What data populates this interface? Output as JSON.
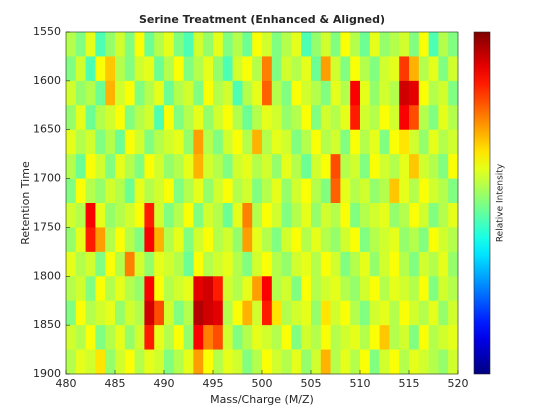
{
  "chart_data": {
    "type": "heatmap",
    "title": "Serine Treatment (Enhanced & Aligned)",
    "x_label": "Mass/Charge (M/Z)",
    "y_label": "Retention Time",
    "colorbar_label": "Relative Intensity",
    "colormap": "jet",
    "clim": [
      0,
      100
    ],
    "y_reversed": true,
    "xlim": [
      480,
      520
    ],
    "ylim": [
      1550,
      1900
    ],
    "xticks": [
      480,
      485,
      490,
      495,
      500,
      505,
      510,
      515,
      520
    ],
    "yticks": [
      1550,
      1600,
      1650,
      1700,
      1750,
      1800,
      1850,
      1900
    ],
    "x": [
      480.5,
      481.5,
      482.5,
      483.5,
      484.5,
      485.5,
      486.5,
      487.5,
      488.5,
      489.5,
      490.5,
      491.5,
      492.5,
      493.5,
      494.5,
      495.5,
      496.5,
      497.5,
      498.5,
      499.5,
      500.5,
      501.5,
      502.5,
      503.5,
      504.5,
      505.5,
      506.5,
      507.5,
      508.5,
      509.5,
      510.5,
      511.5,
      512.5,
      513.5,
      514.5,
      515.5,
      516.5,
      517.5,
      518.5,
      519.5
    ],
    "y": [
      1562.5,
      1587.5,
      1612.5,
      1637.5,
      1662.5,
      1687.5,
      1712.5,
      1737.5,
      1762.5,
      1787.5,
      1812.5,
      1837.5,
      1862.5,
      1887.5
    ],
    "values": [
      [
        55,
        50,
        60,
        45,
        52,
        58,
        50,
        62,
        48,
        55,
        60,
        50,
        45,
        58,
        52,
        60,
        50,
        55,
        48,
        62,
        58,
        50,
        55,
        60,
        45,
        52,
        58,
        50,
        62,
        55,
        48,
        60,
        52,
        55,
        58,
        50,
        62,
        45,
        55,
        50
      ],
      [
        50,
        58,
        45,
        62,
        68,
        55,
        50,
        58,
        60,
        48,
        55,
        62,
        50,
        55,
        60,
        52,
        45,
        58,
        62,
        55,
        75,
        50,
        58,
        55,
        60,
        48,
        72,
        58,
        50,
        62,
        55,
        50,
        58,
        60,
        82,
        70,
        55,
        60,
        50,
        58
      ],
      [
        58,
        52,
        55,
        48,
        70,
        58,
        62,
        50,
        55,
        60,
        48,
        55,
        58,
        50,
        62,
        55,
        58,
        45,
        55,
        60,
        78,
        55,
        50,
        62,
        58,
        55,
        50,
        60,
        55,
        88,
        60,
        52,
        58,
        55,
        92,
        90,
        62,
        55,
        58,
        50
      ],
      [
        52,
        60,
        48,
        55,
        58,
        62,
        50,
        55,
        58,
        45,
        62,
        50,
        55,
        60,
        52,
        58,
        62,
        55,
        48,
        55,
        60,
        58,
        52,
        55,
        62,
        50,
        58,
        55,
        60,
        85,
        58,
        55,
        62,
        58,
        88,
        80,
        55,
        50,
        60,
        55
      ],
      [
        60,
        55,
        58,
        50,
        55,
        48,
        62,
        58,
        50,
        55,
        58,
        60,
        52,
        72,
        55,
        50,
        58,
        62,
        55,
        70,
        55,
        60,
        58,
        50,
        55,
        62,
        55,
        58,
        50,
        62,
        55,
        60,
        50,
        62,
        65,
        58,
        52,
        60,
        55,
        58
      ],
      [
        55,
        48,
        62,
        58,
        50,
        60,
        55,
        50,
        62,
        58,
        52,
        55,
        60,
        70,
        58,
        55,
        50,
        58,
        60,
        55,
        58,
        52,
        60,
        55,
        48,
        58,
        62,
        80,
        55,
        58,
        50,
        62,
        58,
        55,
        60,
        68,
        58,
        55,
        50,
        62
      ],
      [
        50,
        62,
        55,
        52,
        58,
        55,
        48,
        60,
        55,
        58,
        62,
        50,
        55,
        60,
        52,
        58,
        62,
        55,
        58,
        50,
        55,
        60,
        52,
        58,
        62,
        55,
        50,
        78,
        60,
        55,
        58,
        52,
        55,
        68,
        60,
        55,
        62,
        58,
        55,
        50
      ],
      [
        58,
        55,
        88,
        60,
        52,
        55,
        58,
        62,
        85,
        58,
        50,
        55,
        62,
        50,
        58,
        55,
        48,
        60,
        75,
        55,
        62,
        58,
        50,
        55,
        60,
        52,
        58,
        55,
        62,
        50,
        55,
        58,
        60,
        52,
        55,
        62,
        58,
        50,
        55,
        60
      ],
      [
        52,
        60,
        85,
        72,
        55,
        62,
        55,
        50,
        88,
        70,
        55,
        60,
        50,
        58,
        62,
        55,
        58,
        52,
        72,
        60,
        55,
        50,
        58,
        62,
        55,
        60,
        55,
        52,
        58,
        62,
        50,
        55,
        58,
        60,
        52,
        55,
        50,
        62,
        58,
        55
      ],
      [
        60,
        55,
        58,
        50,
        62,
        55,
        75,
        58,
        52,
        60,
        58,
        55,
        48,
        62,
        55,
        58,
        60,
        55,
        50,
        58,
        62,
        55,
        52,
        58,
        60,
        55,
        62,
        58,
        50,
        55,
        60,
        52,
        58,
        62,
        55,
        50,
        58,
        55,
        60,
        52
      ],
      [
        55,
        58,
        50,
        62,
        55,
        60,
        55,
        52,
        88,
        62,
        55,
        58,
        60,
        90,
        92,
        85,
        58,
        55,
        60,
        72,
        88,
        55,
        58,
        50,
        62,
        55,
        58,
        60,
        55,
        52,
        58,
        62,
        55,
        60,
        58,
        55,
        62,
        50,
        58,
        55
      ],
      [
        50,
        62,
        55,
        58,
        60,
        52,
        58,
        55,
        92,
        80,
        58,
        50,
        55,
        95,
        92,
        90,
        55,
        62,
        70,
        58,
        85,
        65,
        55,
        58,
        60,
        52,
        65,
        58,
        62,
        55,
        50,
        58,
        60,
        55,
        62,
        58,
        55,
        60,
        52,
        58
      ],
      [
        58,
        55,
        62,
        50,
        55,
        60,
        52,
        58,
        85,
        60,
        55,
        62,
        52,
        88,
        75,
        80,
        58,
        50,
        55,
        60,
        58,
        55,
        62,
        50,
        58,
        55,
        62,
        55,
        58,
        60,
        55,
        62,
        68,
        55,
        58,
        50,
        62,
        55,
        58,
        60
      ],
      [
        55,
        60,
        58,
        65,
        52,
        58,
        62,
        55,
        60,
        58,
        50,
        55,
        60,
        72,
        62,
        55,
        60,
        58,
        50,
        55,
        62,
        58,
        55,
        60,
        52,
        58,
        70,
        55,
        60,
        55,
        62,
        50,
        58,
        62,
        55,
        60,
        58,
        55,
        52,
        58
      ]
    ]
  }
}
